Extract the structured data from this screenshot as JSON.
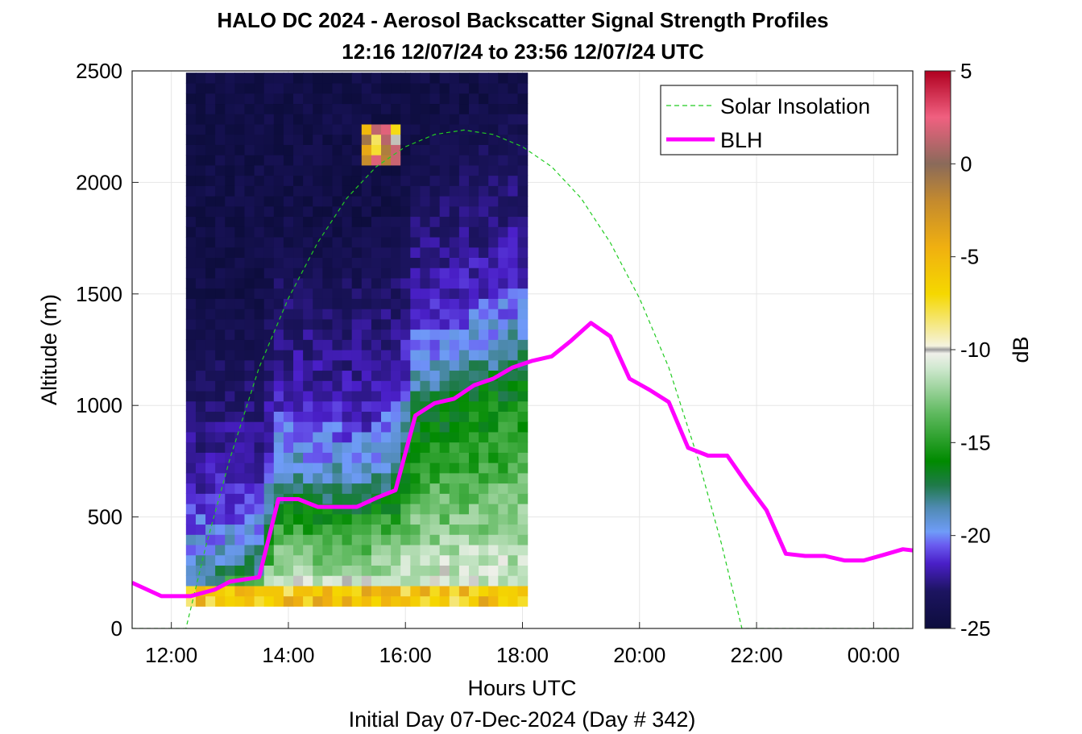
{
  "chart_data": {
    "type": "heatmap",
    "title": "HALO DC 2024 - Aerosol Backscatter Signal Strength Profiles",
    "subtitle": "12:16 12/07/24 to 23:56 12/07/24  UTC",
    "xlabel": "Hours UTC",
    "ylabel": "Altitude (m)",
    "footer": "Initial Day 07-Dec-2024 (Day # 342)",
    "xlim": [
      11.33,
      24.67
    ],
    "ylim": [
      0,
      2500
    ],
    "x_ticks": [
      12,
      14,
      16,
      18,
      20,
      22,
      24
    ],
    "x_tick_labels": [
      "12:00",
      "14:00",
      "16:00",
      "18:00",
      "20:00",
      "22:00",
      "00:00"
    ],
    "y_ticks": [
      0,
      500,
      1000,
      1500,
      2000,
      2500
    ],
    "y_tick_labels": [
      "0",
      "500",
      "1000",
      "1500",
      "2000",
      "2500"
    ],
    "grid": true,
    "legend_position": "top-right",
    "colorbar": {
      "label": "dB",
      "range": [
        -25,
        5
      ],
      "ticks": [
        -25,
        -20,
        -15,
        -10,
        -5,
        0,
        5
      ],
      "tick_labels": [
        "-25",
        "-20",
        "-15",
        "-10",
        "-5",
        "0",
        "5"
      ],
      "stops": [
        {
          "v": -25,
          "color": "#0d0d3d"
        },
        {
          "v": -23,
          "color": "#1c1460"
        },
        {
          "v": -21.5,
          "color": "#4a1fc8"
        },
        {
          "v": -20.5,
          "color": "#6a5cf0"
        },
        {
          "v": -19.8,
          "color": "#6f9cf8"
        },
        {
          "v": -18.5,
          "color": "#4f8ab2"
        },
        {
          "v": -17.3,
          "color": "#1f7a4a"
        },
        {
          "v": -16,
          "color": "#008a00"
        },
        {
          "v": -13.5,
          "color": "#5cb85c"
        },
        {
          "v": -11,
          "color": "#cfe8cf"
        },
        {
          "v": -10.2,
          "color": "#f0f0ea"
        },
        {
          "v": -10,
          "color": "#9d9d9d"
        },
        {
          "v": -9.8,
          "color": "#f5f3df"
        },
        {
          "v": -7,
          "color": "#f5d800"
        },
        {
          "v": -4.5,
          "color": "#f0b010"
        },
        {
          "v": -2,
          "color": "#c48a2e"
        },
        {
          "v": 0,
          "color": "#8a6a5a"
        },
        {
          "v": 2.5,
          "color": "#f06080"
        },
        {
          "v": 5,
          "color": "#b00020"
        }
      ]
    },
    "heatmap": {
      "x_start": 12.25,
      "x_step": 0.1667,
      "columns": 35,
      "y_start": 100,
      "y_step": 46,
      "rows": 52,
      "units": "dB"
    },
    "series": [
      {
        "name": "Solar Insolation",
        "style": "dashed",
        "color": "#22cc22",
        "x": [
          11.33,
          12.25,
          12.6,
          13.0,
          13.5,
          14.0,
          14.5,
          15.0,
          15.5,
          16.0,
          16.5,
          17.0,
          17.5,
          18.0,
          18.5,
          19.0,
          19.5,
          20.0,
          20.5,
          21.0,
          21.4,
          21.75,
          22.0,
          24.67
        ],
        "y": [
          0,
          0,
          380,
          760,
          1170,
          1480,
          1730,
          1930,
          2070,
          2160,
          2215,
          2235,
          2215,
          2160,
          2070,
          1930,
          1730,
          1480,
          1170,
          760,
          380,
          0,
          0,
          0
        ]
      },
      {
        "name": "BLH",
        "style": "solid",
        "color": "#ff00ff",
        "x": [
          11.33,
          11.83,
          12.33,
          12.75,
          13.0,
          13.25,
          13.5,
          13.83,
          14.17,
          14.5,
          14.83,
          15.17,
          15.5,
          15.83,
          16.17,
          16.5,
          16.83,
          17.17,
          17.5,
          17.83,
          18.17,
          18.5,
          18.83,
          19.17,
          19.5,
          19.83,
          20.17,
          20.5,
          20.83,
          21.17,
          21.5,
          21.83,
          22.17,
          22.5,
          22.83,
          23.17,
          23.5,
          23.83,
          24.17,
          24.5,
          24.67
        ],
        "y": [
          205,
          145,
          145,
          175,
          210,
          220,
          230,
          580,
          580,
          545,
          545,
          545,
          585,
          620,
          955,
          1010,
          1030,
          1090,
          1120,
          1170,
          1200,
          1220,
          1290,
          1370,
          1310,
          1120,
          1070,
          1015,
          810,
          775,
          775,
          650,
          530,
          335,
          325,
          325,
          305,
          305,
          330,
          355,
          350
        ]
      }
    ]
  }
}
